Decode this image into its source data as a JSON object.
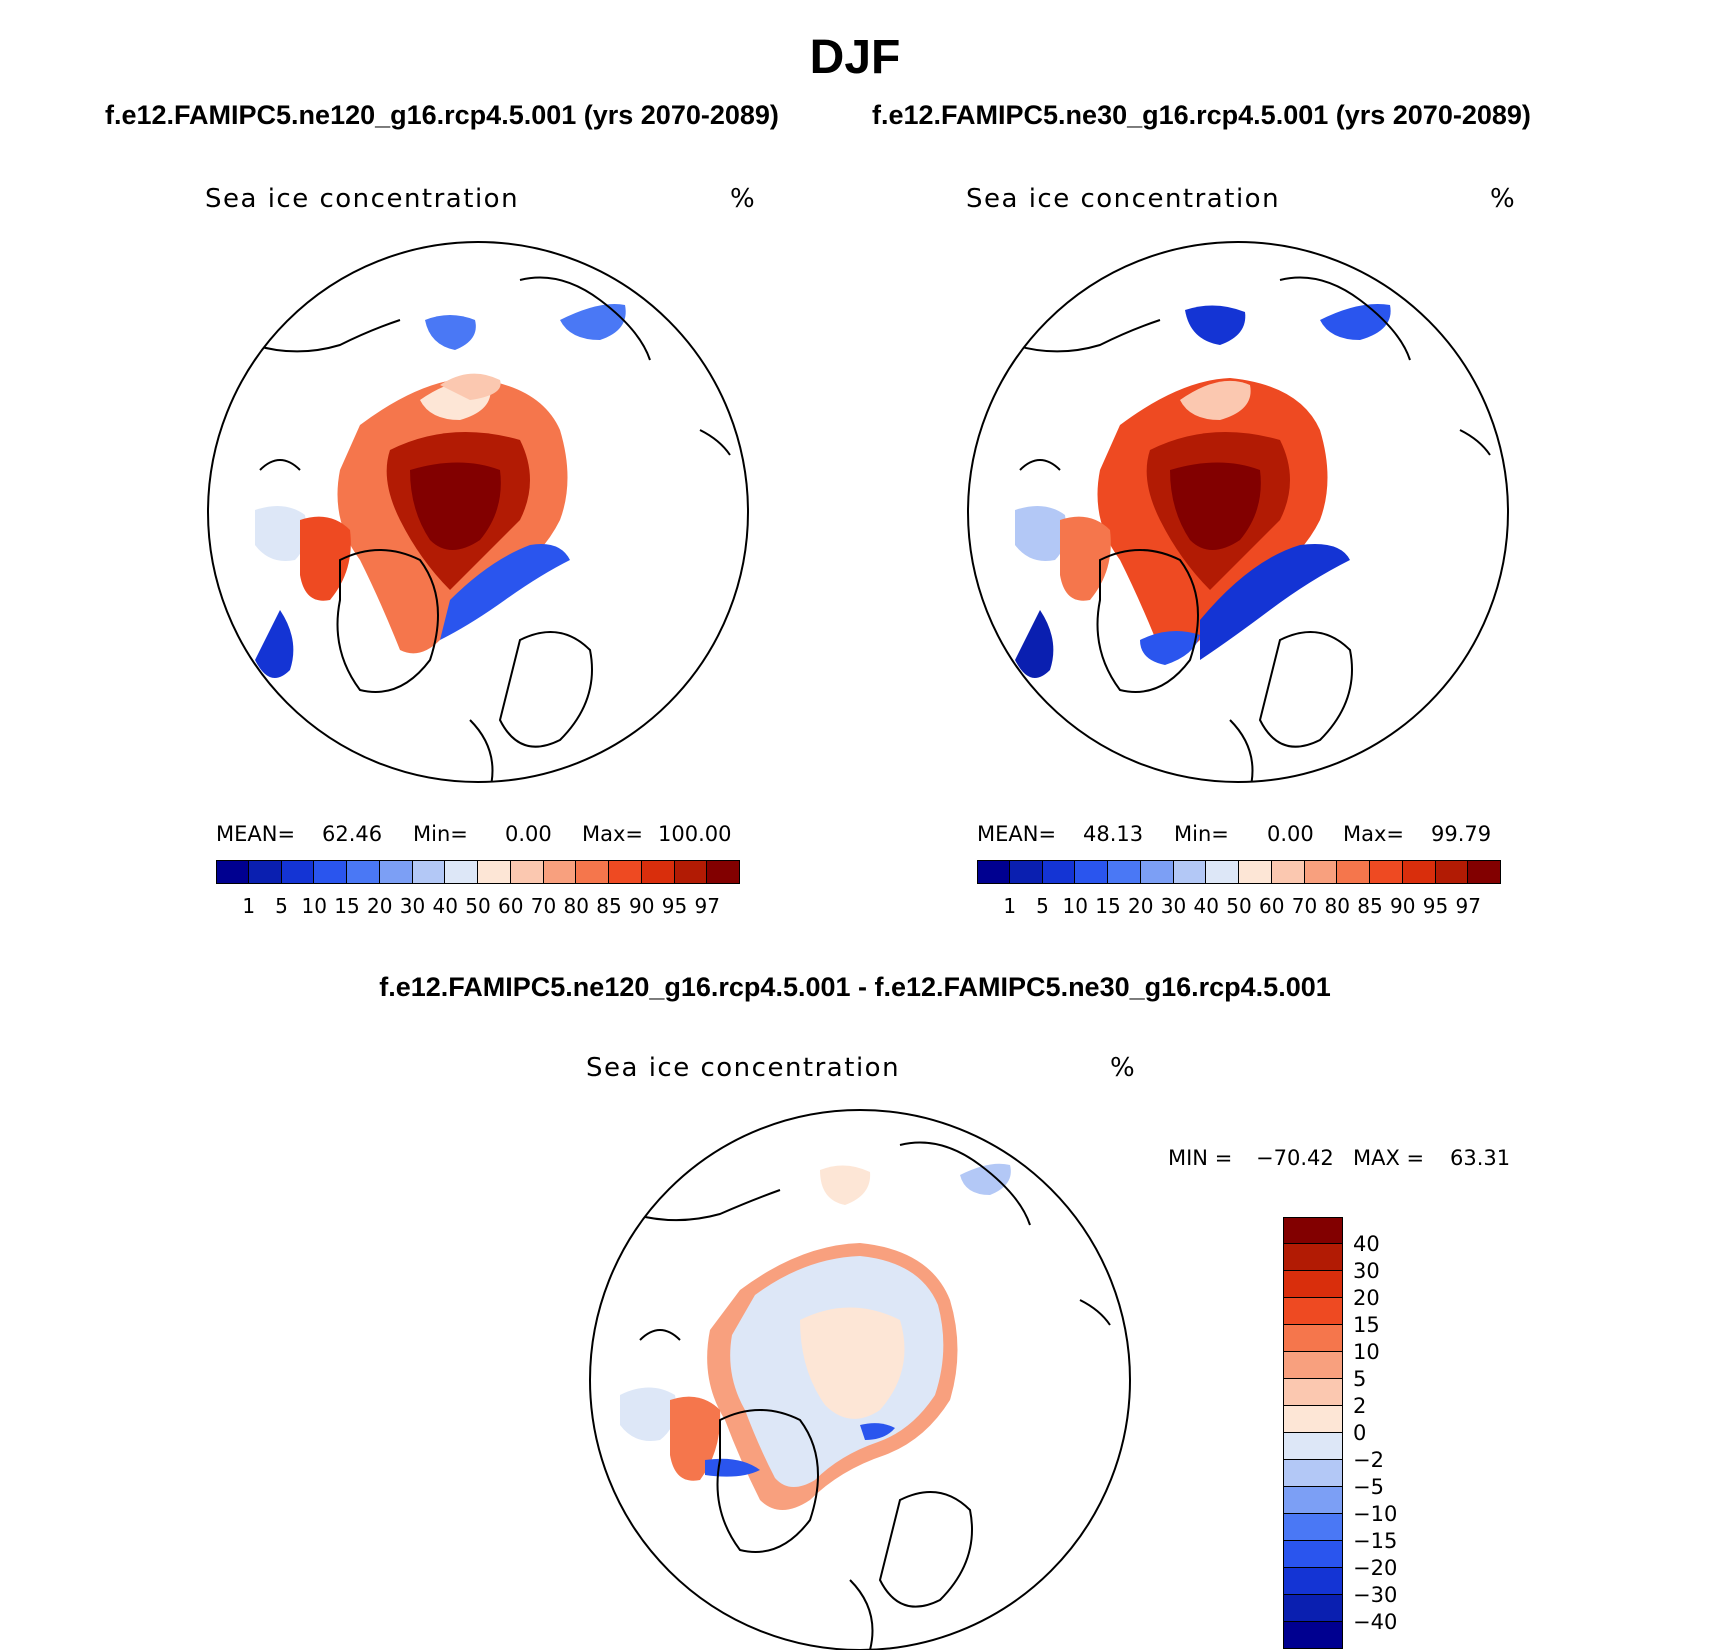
{
  "figure": {
    "title": "DJF",
    "left_case": "f.e12.FAMIPC5.ne120_g16.rcp4.5.001 (yrs 2070-2089)",
    "right_case": "f.e12.FAMIPC5.ne30_g16.rcp4.5.001 (yrs 2070-2089)",
    "diff_title": "f.e12.FAMIPC5.ne120_g16.rcp4.5.001 - f.e12.FAMIPC5.ne30_g16.rcp4.5.001"
  },
  "panels": [
    {
      "variable": "Sea ice concentration",
      "units": "%",
      "stats": {
        "mean_label": "MEAN=",
        "mean": "62.46",
        "min_label": "Min=",
        "min": "0.00",
        "max_label": "Max=",
        "max": "100.00"
      }
    },
    {
      "variable": "Sea ice concentration",
      "units": "%",
      "stats": {
        "mean_label": "MEAN=",
        "mean": "48.13",
        "min_label": "Min=",
        "min": "0.00",
        "max_label": "Max=",
        "max": "99.79"
      }
    },
    {
      "variable": "Sea ice concentration",
      "units": "%",
      "stats": {
        "min_label": "MIN =",
        "min": "−70.42",
        "max_label": "MAX =",
        "max": "63.31"
      }
    }
  ],
  "colorbar_abs": {
    "levels": [
      "1",
      "5",
      "10",
      "15",
      "20",
      "30",
      "40",
      "50",
      "60",
      "70",
      "80",
      "85",
      "90",
      "95",
      "97"
    ],
    "colors": [
      "#000090",
      "#0a1fb0",
      "#1434d4",
      "#2a55ee",
      "#4a78f5",
      "#7c9ff5",
      "#b3c8f6",
      "#dde7f7",
      "#fde6d6",
      "#fbc8b0",
      "#f8a07e",
      "#f5764c",
      "#ee4a22",
      "#d92e0c",
      "#b21b04",
      "#820000"
    ]
  },
  "colorbar_diff": {
    "levels": [
      "40",
      "30",
      "20",
      "15",
      "10",
      "5",
      "2",
      "0",
      "−2",
      "−5",
      "−10",
      "−15",
      "−20",
      "−30",
      "−40"
    ],
    "colors": [
      "#820000",
      "#b21b04",
      "#d92e0c",
      "#ee4a22",
      "#f5764c",
      "#f8a07e",
      "#fbc8b0",
      "#fde6d6",
      "#dde7f7",
      "#b3c8f6",
      "#7c9ff5",
      "#4a78f5",
      "#2a55ee",
      "#1434d4",
      "#0a1fb0",
      "#000090"
    ]
  }
}
